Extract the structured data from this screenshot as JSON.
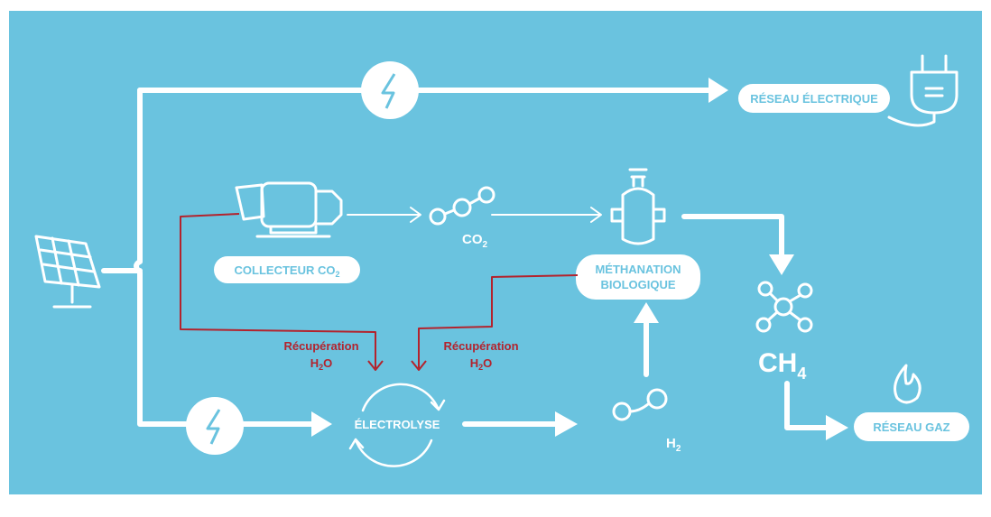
{
  "nodes": {
    "electric_grid": {
      "label": "RÉSEAU ÉLECTRIQUE"
    },
    "collector": {
      "label": "COLLECTEUR CO",
      "sub": "2"
    },
    "co2": {
      "label": "CO",
      "sub": "2"
    },
    "methanation": {
      "label": [
        "MÉTHANATION",
        "BIOLOGIQUE"
      ]
    },
    "electrolysis": {
      "label": "ÉLECTROLYSE"
    },
    "h2": {
      "label": "H",
      "sub": "2"
    },
    "ch4": {
      "label": "CH",
      "sub": "4"
    },
    "gas_grid": {
      "label": "RÉSEAU GAZ"
    }
  },
  "water_recovery": [
    {
      "line1": "Récupération",
      "element": "H",
      "sub": "2",
      "after": "O"
    },
    {
      "line1": "Récupération",
      "element": "H",
      "sub": "2",
      "after": "O"
    }
  ]
}
